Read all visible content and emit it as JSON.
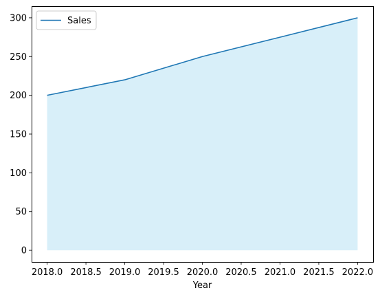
{
  "chart_data": {
    "type": "area",
    "title": "",
    "xlabel": "Year",
    "ylabel": "",
    "x": [
      2018,
      2019,
      2020,
      2021,
      2022
    ],
    "series": [
      {
        "name": "Sales",
        "values": [
          200,
          220,
          250,
          275,
          300
        ],
        "color": "#1f77b4",
        "fill_color": "#87ceeb"
      }
    ],
    "xlim": [
      2017.8,
      2022.2
    ],
    "ylim": [
      -15,
      315
    ],
    "x_ticks": [
      2018.0,
      2018.5,
      2019.0,
      2019.5,
      2020.0,
      2020.5,
      2021.0,
      2021.5,
      2022.0
    ],
    "x_tick_labels": [
      "2018.0",
      "2018.5",
      "2019.0",
      "2019.5",
      "2020.0",
      "2020.5",
      "2021.0",
      "2021.5",
      "2022.0"
    ],
    "y_ticks": [
      0,
      50,
      100,
      150,
      200,
      250,
      300
    ],
    "y_tick_labels": [
      "0",
      "50",
      "100",
      "150",
      "200",
      "250",
      "300"
    ],
    "grid": false,
    "legend": "top-left"
  }
}
